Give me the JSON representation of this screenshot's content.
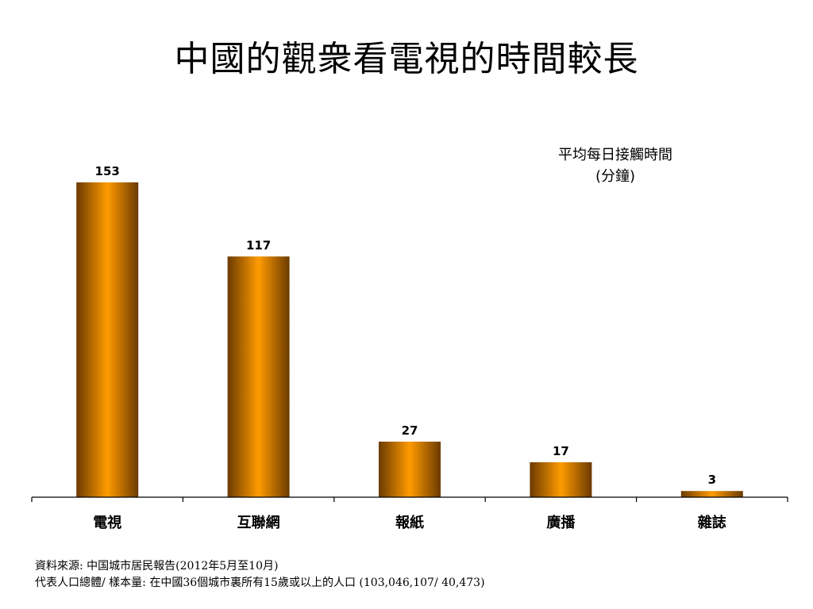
{
  "title": "中國的觀衆看電視的時間較長",
  "subtitle_line1": "平均每日接觸時間",
  "subtitle_line2": "(分鐘)",
  "colors": {
    "bar_center": "#ff9b00",
    "bar_edge": "#6b3a00",
    "axis": "#000000"
  },
  "chart_data": {
    "type": "bar",
    "title": "",
    "ylabel": "平均每日接觸時間 (分鐘)",
    "categories": [
      "電視",
      "互聯網",
      "報紙",
      "廣播",
      "雜誌"
    ],
    "values": [
      153,
      117,
      27,
      17,
      3
    ],
    "grid": false,
    "legend": "none"
  },
  "footnotes": {
    "source": "資料來源: 中国城市居民報告(2012年5月至10月)",
    "sample": "代表人口總體/ 樣本量: 在中國36個城市裏所有15歲或以上的人口 (103,046,107/ 40,473)"
  }
}
